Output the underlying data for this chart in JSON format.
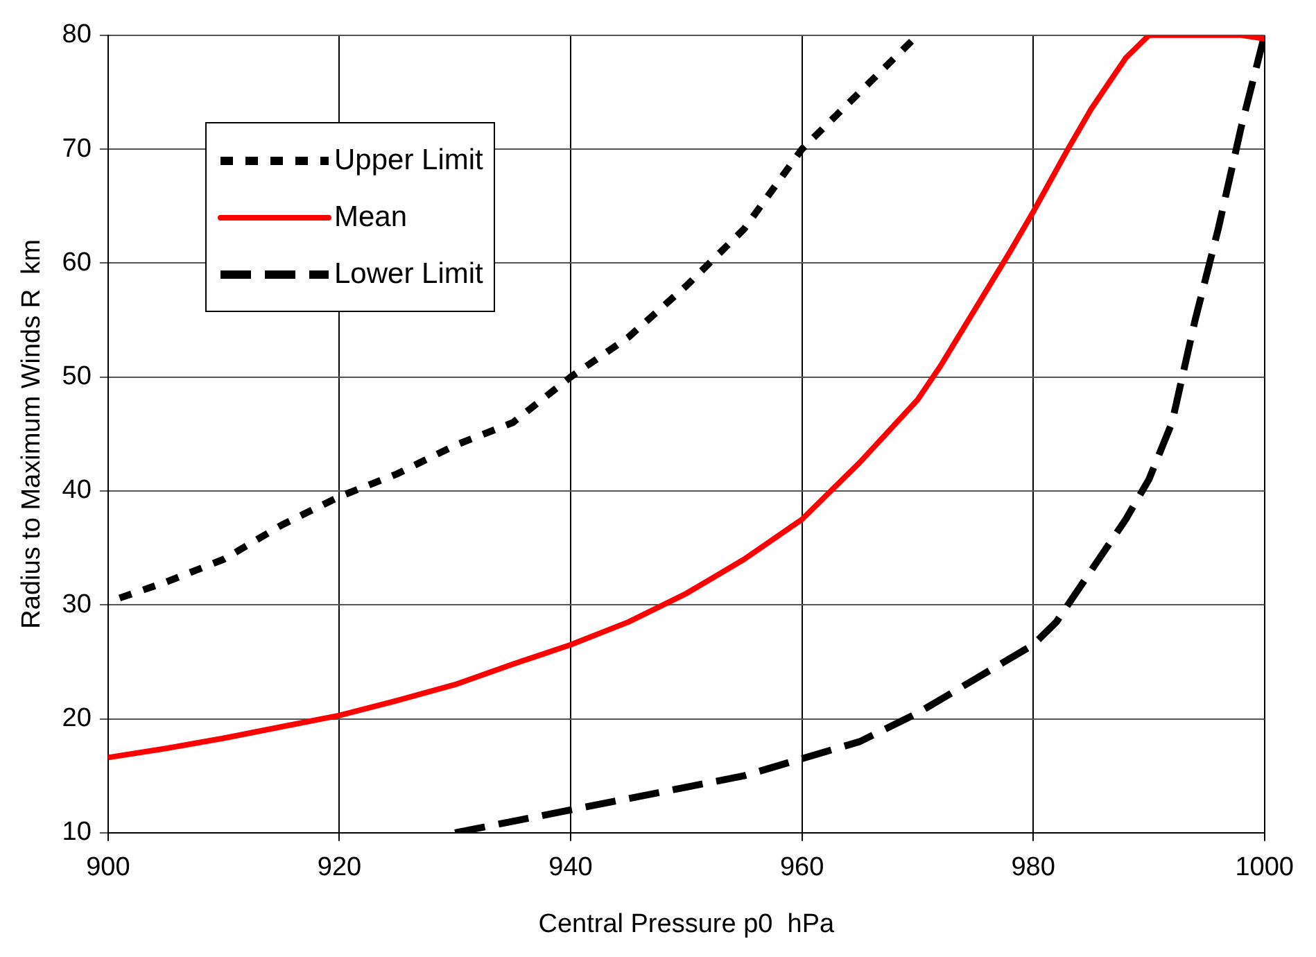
{
  "chart_data": {
    "type": "line",
    "xlabel": "Central Pressure p0  hPa",
    "ylabel": "Radius to Maximum Winds R  km",
    "xlim": [
      900,
      1000
    ],
    "xticks": [
      900,
      920,
      940,
      960,
      980,
      1000
    ],
    "ylim": [
      10,
      80
    ],
    "yticks": [
      10,
      20,
      30,
      40,
      50,
      60,
      70,
      80
    ],
    "grid": true,
    "legend": "top left",
    "marker": "none",
    "series": [
      {
        "name": "Upper Limit",
        "color": "#000000",
        "line_style": "dotted",
        "x": [
          901,
          905,
          910,
          915,
          920,
          925,
          930,
          935,
          940,
          945,
          950,
          955,
          960,
          965,
          970
        ],
        "values": [
          30.6,
          32,
          34,
          37,
          39.5,
          41.5,
          44,
          46,
          50,
          53.5,
          58,
          63,
          70,
          75,
          80
        ]
      },
      {
        "name": "Mean",
        "color": "#ff0000",
        "line_style": "solid",
        "x": [
          900,
          905,
          910,
          915,
          920,
          925,
          930,
          935,
          940,
          945,
          950,
          955,
          960,
          965,
          970,
          972,
          975,
          978,
          980,
          983,
          985,
          987,
          988,
          989,
          990,
          995,
          998,
          1000
        ],
        "values": [
          16.6,
          17.4,
          18.3,
          19.3,
          20.3,
          21.6,
          23,
          24.8,
          26.5,
          28.5,
          31,
          34,
          37.5,
          42.5,
          48,
          51,
          56,
          61,
          64.5,
          70,
          73.5,
          76.5,
          78,
          79,
          80,
          80,
          80,
          79.7
        ]
      },
      {
        "name": "Lower Limit",
        "color": "#000000",
        "line_style": "dashed",
        "x": [
          930,
          935,
          940,
          945,
          950,
          955,
          960,
          965,
          970,
          975,
          980,
          982,
          985,
          988,
          990,
          992,
          994,
          996,
          998,
          1000
        ],
        "values": [
          10,
          11,
          12,
          13,
          14,
          15,
          16.5,
          18,
          20.5,
          23.5,
          26.5,
          28.5,
          33,
          37.5,
          41,
          46,
          55,
          63,
          72,
          80
        ]
      }
    ]
  }
}
